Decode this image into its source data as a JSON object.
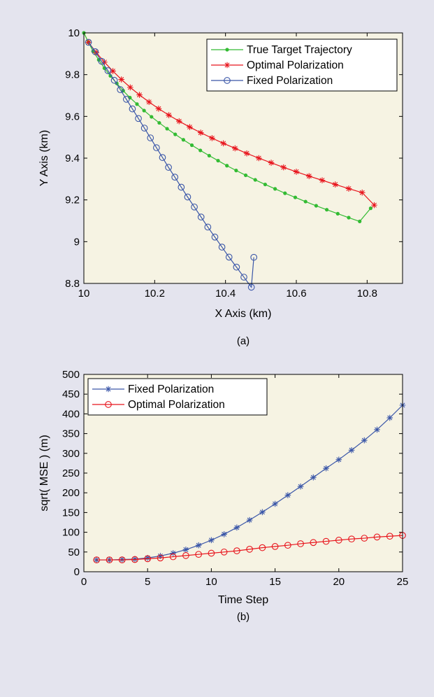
{
  "colors": {
    "background": "#e4e4ee",
    "plot_bg": "#f6f3e3",
    "green": "#33bb33",
    "red": "#e8141c",
    "blue": "#3a56a8"
  },
  "chart_data": [
    {
      "type": "line",
      "caption": "(a)",
      "xlabel": "X Axis (km)",
      "ylabel": "Y Axis (km)",
      "xlim": [
        10,
        10.9
      ],
      "ylim": [
        8.8,
        10
      ],
      "xticks": [
        10,
        10.2,
        10.4,
        10.6,
        10.8
      ],
      "yticks": [
        8.8,
        9,
        9.2,
        9.4,
        9.6,
        9.8,
        10
      ],
      "xtick_labels": [
        "10",
        "10.2",
        "10.4",
        "10.6",
        "10.8"
      ],
      "ytick_labels": [
        "8.8",
        "9",
        "9.2",
        "9.4",
        "9.6",
        "9.8",
        "10"
      ],
      "grid": false,
      "legend_position": "top-right",
      "series": [
        {
          "name": "True Target Trajectory",
          "color": "#33bb33",
          "marker": "dot",
          "x": [
            10,
            10.013,
            10.026,
            10.042,
            10.058,
            10.075,
            10.093,
            10.111,
            10.13,
            10.15,
            10.17,
            10.191,
            10.213,
            10.235,
            10.258,
            10.281,
            10.305,
            10.329,
            10.354,
            10.379,
            10.404,
            10.43,
            10.457,
            10.484,
            10.512,
            10.54,
            10.568,
            10.597,
            10.626,
            10.656,
            10.686,
            10.717,
            10.748,
            10.779,
            10.81
          ],
          "y": [
            10,
            9.955,
            9.912,
            9.871,
            9.831,
            9.794,
            9.758,
            9.723,
            9.69,
            9.659,
            9.628,
            9.598,
            9.569,
            9.541,
            9.514,
            9.488,
            9.462,
            9.437,
            9.412,
            9.388,
            9.364,
            9.341,
            9.318,
            9.296,
            9.274,
            9.253,
            9.232,
            9.212,
            9.192,
            9.172,
            9.153,
            9.134,
            9.115,
            9.097,
            9.16
          ]
        },
        {
          "name": "Optimal Polarization",
          "color": "#e8141c",
          "marker": "star",
          "x": [
            10.013,
            10.035,
            10.058,
            10.082,
            10.106,
            10.131,
            10.157,
            10.184,
            10.211,
            10.24,
            10.269,
            10.299,
            10.33,
            10.362,
            10.394,
            10.427,
            10.46,
            10.494,
            10.529,
            10.564,
            10.6,
            10.636,
            10.673,
            10.71,
            10.748,
            10.786,
            10.82
          ],
          "y": [
            9.955,
            9.906,
            9.86,
            9.817,
            9.777,
            9.739,
            9.703,
            9.669,
            9.637,
            9.606,
            9.577,
            9.549,
            9.522,
            9.496,
            9.471,
            9.447,
            9.423,
            9.4,
            9.378,
            9.356,
            9.335,
            9.314,
            9.294,
            9.274,
            9.254,
            9.235,
            9.175
          ]
        },
        {
          "name": "Fixed Polarization",
          "color": "#3a56a8",
          "marker": "circle",
          "x": [
            10.013,
            10.032,
            10.05,
            10.068,
            10.086,
            10.103,
            10.12,
            10.137,
            10.154,
            10.171,
            10.188,
            10.205,
            10.222,
            10.239,
            10.257,
            10.275,
            10.293,
            10.312,
            10.331,
            10.35,
            10.37,
            10.39,
            10.41,
            10.431,
            10.452,
            10.473,
            10.48
          ],
          "y": [
            9.955,
            9.91,
            9.864,
            9.819,
            9.773,
            9.728,
            9.682,
            9.636,
            9.59,
            9.544,
            9.497,
            9.45,
            9.403,
            9.356,
            9.309,
            9.261,
            9.214,
            9.166,
            9.118,
            9.07,
            9.022,
            8.974,
            8.926,
            8.878,
            8.83,
            8.782,
            8.925
          ]
        }
      ]
    },
    {
      "type": "line",
      "caption": "(b)",
      "xlabel": "Time Step",
      "ylabel": "sqrt( MSE ) (m)",
      "xlim": [
        0,
        25
      ],
      "ylim": [
        0,
        500
      ],
      "xticks": [
        0,
        5,
        10,
        15,
        20,
        25
      ],
      "yticks": [
        0,
        50,
        100,
        150,
        200,
        250,
        300,
        350,
        400,
        450,
        500
      ],
      "xtick_labels": [
        "0",
        "5",
        "10",
        "15",
        "20",
        "25"
      ],
      "ytick_labels": [
        "0",
        "50",
        "100",
        "150",
        "200",
        "250",
        "300",
        "350",
        "400",
        "450",
        "500"
      ],
      "grid": false,
      "legend_position": "top-left",
      "series": [
        {
          "name": "Fixed Polarization",
          "color": "#3a56a8",
          "marker": "star",
          "x": [
            1,
            2,
            3,
            4,
            5,
            6,
            7,
            8,
            9,
            10,
            11,
            12,
            13,
            14,
            15,
            16,
            17,
            18,
            19,
            20,
            21,
            22,
            23,
            24,
            25
          ],
          "y": [
            30,
            30,
            31,
            32,
            35,
            40,
            47,
            56,
            67,
            80,
            95,
            112,
            131,
            151,
            172,
            194,
            216,
            239,
            262,
            284,
            308,
            333,
            360,
            390,
            422
          ]
        },
        {
          "name": "Optimal Polarization",
          "color": "#e8141c",
          "marker": "circle",
          "x": [
            1,
            2,
            3,
            4,
            5,
            6,
            7,
            8,
            9,
            10,
            11,
            12,
            13,
            14,
            15,
            16,
            17,
            18,
            19,
            20,
            21,
            22,
            23,
            24,
            25
          ],
          "y": [
            30,
            30,
            30,
            31,
            33,
            35,
            38,
            41,
            44,
            47,
            50,
            53,
            57,
            61,
            64,
            67,
            71,
            74,
            77,
            80,
            83,
            85,
            88,
            90,
            92
          ]
        }
      ]
    }
  ]
}
